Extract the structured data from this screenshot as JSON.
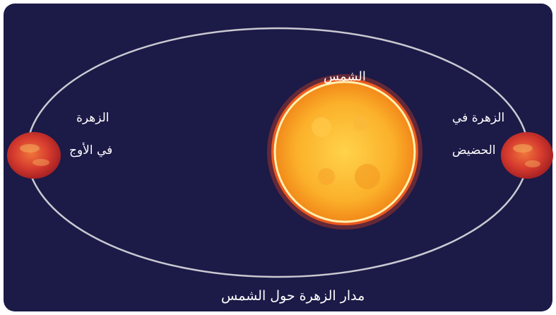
{
  "labels": {
    "sun": "الشمس",
    "venus_aphelion_line1": "الزهرة",
    "venus_aphelion_line2": "في الأوج",
    "venus_perihelion_line1": "الزهرة في",
    "venus_perihelion_line2": "الحضيض",
    "orbit_caption": "مدار الزهرة حول الشمس"
  },
  "colors": {
    "background": "#1c1a47",
    "orbit": "#c9c9d2",
    "sun": "#f7a11a",
    "sun_corona": "#e8491e",
    "venus": "#d3392f",
    "text": "#ffffff"
  }
}
